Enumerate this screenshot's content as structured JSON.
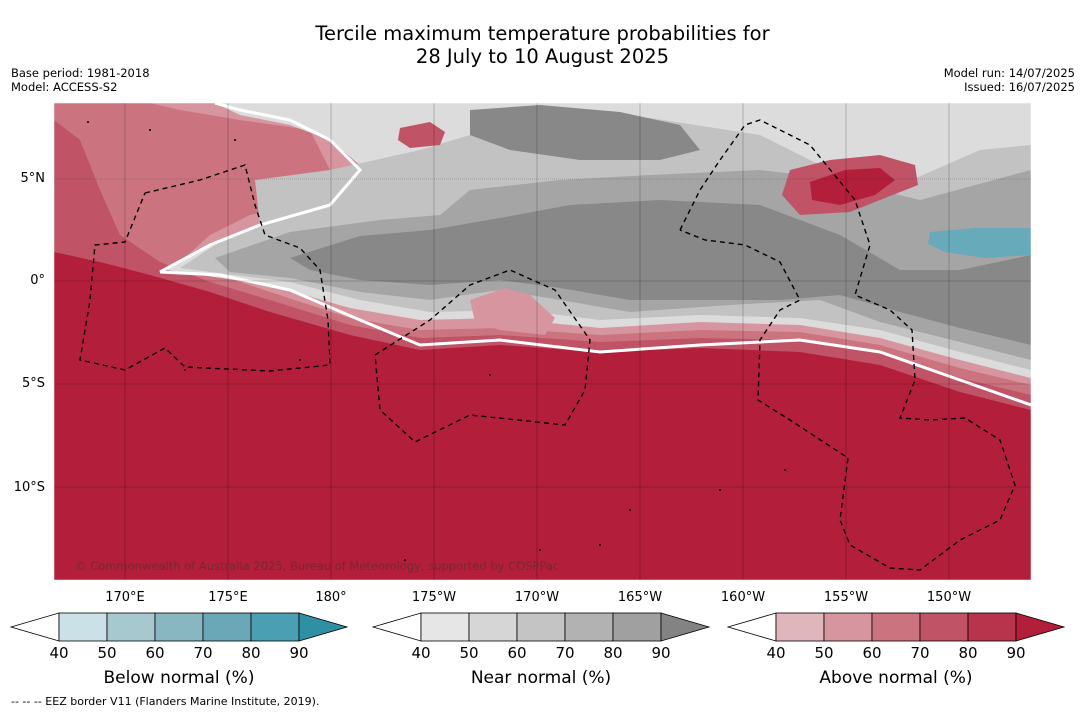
{
  "title": {
    "line1": "Tercile maximum temperature probabilities for",
    "line2": "28 July to 10 August 2025"
  },
  "meta_left": {
    "base_period": "Base period: 1981-2018",
    "model": "Model: ACCESS-S2"
  },
  "meta_right": {
    "model_run": "Model run: 14/07/2025",
    "issued": "Issued: 16/07/2025"
  },
  "map": {
    "latitude_labels": [
      "5°N",
      "0°",
      "5°S",
      "10°S"
    ],
    "longitude_labels": [
      "170°E",
      "175°E",
      "180°",
      "175°W",
      "170°W",
      "165°W",
      "160°W",
      "155°W",
      "150°W"
    ],
    "credit": "© Commonwealth of Australia 2025, Bureau of Meteorology, supported by COSPPac",
    "colors": {
      "above_normal_dominant": "#b31e3a",
      "near_normal_shades": [
        "#dcdcdc",
        "#c2c2c2",
        "#a5a5a5",
        "#888888"
      ],
      "below_normal_patch": "#67aab9",
      "coastline": "#000000"
    }
  },
  "colorbars": [
    {
      "title": "Below normal (%)",
      "ticks": [
        "40",
        "50",
        "60",
        "70",
        "80",
        "90"
      ],
      "colors": [
        "#ffffff",
        "#c9e1e7",
        "#a6c9d0",
        "#88b7c2",
        "#6aa8b7",
        "#4aa0b2",
        "#2f8fa3"
      ]
    },
    {
      "title": "Near normal (%)",
      "ticks": [
        "40",
        "50",
        "60",
        "70",
        "80",
        "90"
      ],
      "colors": [
        "#ffffff",
        "#e6e6e6",
        "#d6d6d6",
        "#c4c4c4",
        "#b2b2b2",
        "#a0a0a0",
        "#838383"
      ]
    },
    {
      "title": "Above normal (%)",
      "ticks": [
        "40",
        "50",
        "60",
        "70",
        "80",
        "90"
      ],
      "colors": [
        "#ffffff",
        "#e0b6bd",
        "#d7969f",
        "#cb7480",
        "#c05366",
        "#b8344c",
        "#b31e3a"
      ]
    }
  ],
  "footnote": "--  --  -- EEZ border V11 (Flanders Marine Institute, 2019)."
}
